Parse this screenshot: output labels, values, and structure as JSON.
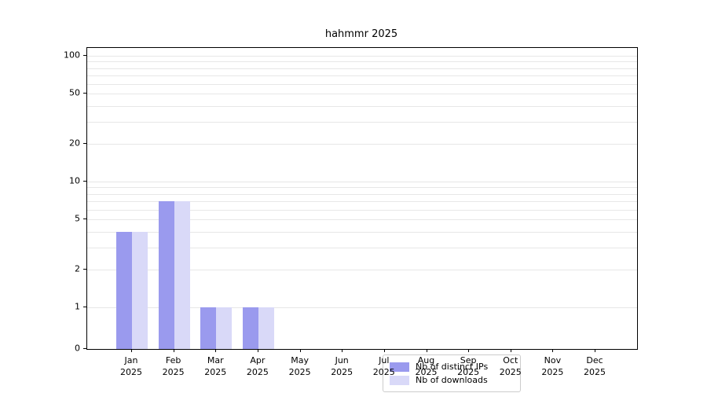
{
  "chart_data": {
    "type": "bar",
    "title": "hahmmr 2025",
    "categories": [
      "Jan",
      "Feb",
      "Mar",
      "Apr",
      "May",
      "Jun",
      "Jul",
      "Aug",
      "Sep",
      "Oct",
      "Nov",
      "Dec"
    ],
    "year_label": "2025",
    "series": [
      {
        "name": "Nb of distinct IPs",
        "color": "#9a9aee",
        "values": [
          4,
          7,
          1,
          1,
          0,
          0,
          0,
          0,
          0,
          0,
          0,
          0
        ]
      },
      {
        "name": "Nb of downloads",
        "color": "#d9d9f8",
        "values": [
          4,
          7,
          1,
          1,
          0,
          0,
          0,
          0,
          0,
          0,
          0,
          0
        ]
      }
    ],
    "yscale": "symlog",
    "yticks": [
      0,
      1,
      2,
      5,
      10,
      20,
      50,
      100
    ],
    "ylim": [
      0,
      130
    ],
    "grid": "horizontal-log-minor",
    "legend_position": "lower-center"
  }
}
